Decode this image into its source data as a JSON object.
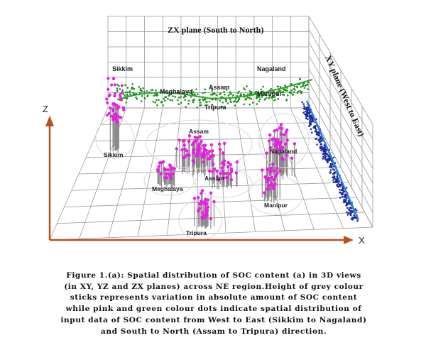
{
  "chart_data": {
    "type": "scatter",
    "title": "",
    "planes": {
      "zx": "ZX plane (South to North)",
      "xy": "XY plane (West to East)"
    },
    "axes": {
      "x": "X",
      "z": "Z"
    },
    "region_labels": {
      "zx_plane": [
        "Sikkim",
        "Meghalaya",
        "Assam",
        "Tripura",
        "Manipur",
        "Nagaland"
      ],
      "floor": [
        "Sikkim",
        "Assam",
        "Meghalaya",
        "Assam",
        "Tripura",
        "Manipur",
        "Nagaland"
      ]
    },
    "series_colors": {
      "grey_sticks": "#8a8a8a",
      "pink_dots": "#e81ee0",
      "green_dots": "#1f8f1f",
      "blue_dots": "#1a2a9a",
      "green_fit_line": "#2fa62f",
      "blue_fit_line": "#2e7de0",
      "axis_arrows": "#b8521c"
    },
    "grid": true
  },
  "caption": "Figure 1.(a): Spatial distribution of SOC content (a) in 3D views\n(in XY, YZ and ZX planes) across NE region.Height of grey colour\nsticks represents variation in absolute amount of SOC content\nwhile pink and green colour dots indicate spatial distribution of\ninput data of SOC content from West to East (Sikkim to Nagaland)\nand South to North (Assam to Tripura) direction."
}
